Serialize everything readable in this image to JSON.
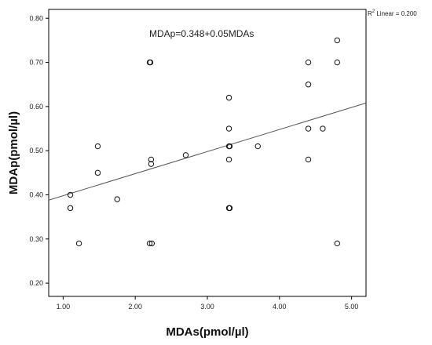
{
  "chart_data": {
    "type": "scatter",
    "xlabel": "MDAs(pmol/µl)",
    "ylabel": "MDAp(pmol/µl)",
    "xlim": [
      0.8,
      5.2
    ],
    "ylim": [
      0.17,
      0.82
    ],
    "x_ticks": [
      1.0,
      2.0,
      3.0,
      4.0,
      5.0
    ],
    "x_tick_labels": [
      "1.00",
      "2.00",
      "3.00",
      "4.00",
      "5.00"
    ],
    "y_ticks": [
      0.2,
      0.3,
      0.4,
      0.5,
      0.6,
      0.7,
      0.8
    ],
    "y_tick_labels": [
      "0.20",
      "0.30",
      "0.40",
      "0.50",
      "0.60",
      "0.70",
      "0.80"
    ],
    "grid": false,
    "equation_text": "MDAp=0.348+0.05MDAs",
    "r2_text": {
      "prefix": "R",
      "sup": "2",
      "suffix": " Linear = 0.200"
    },
    "fit_line": {
      "intercept": 0.348,
      "slope": 0.05
    },
    "marker_style": "open-circle",
    "points": [
      {
        "x": 1.1,
        "y": 0.4
      },
      {
        "x": 1.1,
        "y": 0.37
      },
      {
        "x": 1.22,
        "y": 0.29
      },
      {
        "x": 1.48,
        "y": 0.51
      },
      {
        "x": 1.48,
        "y": 0.45
      },
      {
        "x": 1.75,
        "y": 0.39
      },
      {
        "x": 2.2,
        "y": 0.7
      },
      {
        "x": 2.21,
        "y": 0.7
      },
      {
        "x": 2.22,
        "y": 0.48
      },
      {
        "x": 2.22,
        "y": 0.47
      },
      {
        "x": 2.2,
        "y": 0.29
      },
      {
        "x": 2.23,
        "y": 0.29
      },
      {
        "x": 2.7,
        "y": 0.49
      },
      {
        "x": 3.3,
        "y": 0.62
      },
      {
        "x": 3.3,
        "y": 0.55
      },
      {
        "x": 3.3,
        "y": 0.51
      },
      {
        "x": 3.31,
        "y": 0.51
      },
      {
        "x": 3.3,
        "y": 0.48
      },
      {
        "x": 3.3,
        "y": 0.37
      },
      {
        "x": 3.31,
        "y": 0.37
      },
      {
        "x": 3.7,
        "y": 0.51
      },
      {
        "x": 4.4,
        "y": 0.7
      },
      {
        "x": 4.4,
        "y": 0.65
      },
      {
        "x": 4.4,
        "y": 0.55
      },
      {
        "x": 4.4,
        "y": 0.48
      },
      {
        "x": 4.6,
        "y": 0.55
      },
      {
        "x": 4.8,
        "y": 0.75
      },
      {
        "x": 4.8,
        "y": 0.7
      },
      {
        "x": 4.8,
        "y": 0.29
      }
    ]
  }
}
